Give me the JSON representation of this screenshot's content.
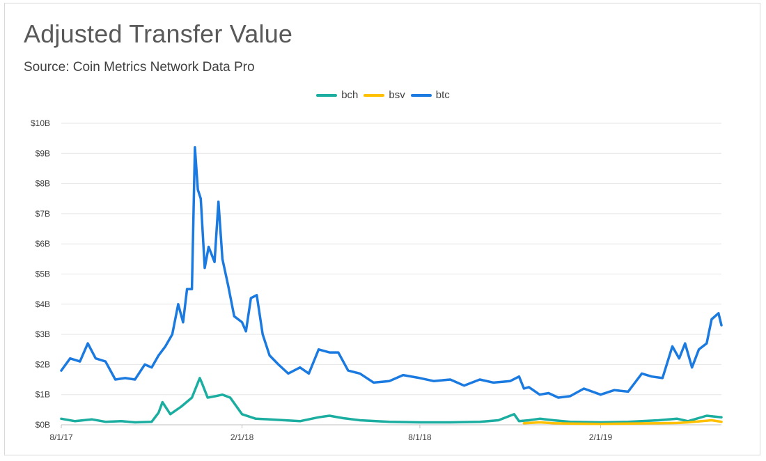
{
  "chart_data": {
    "type": "line",
    "title": "Adjusted Transfer Value",
    "subtitle": "Source:  Coin Metrics Network Data Pro",
    "xlabel": "",
    "ylabel": "",
    "x_ticks": [
      "8/1/17",
      "2/1/18",
      "8/1/18",
      "2/1/19"
    ],
    "y_ticks": [
      "$0B",
      "$1B",
      "$2B",
      "$3B",
      "$4B",
      "$5B",
      "$6B",
      "$7B",
      "$8B",
      "$9B",
      "$10B"
    ],
    "ylim": [
      0,
      10
    ],
    "y_unit": "billions USD",
    "xlim": [
      "2017-08-01",
      "2019-06-04"
    ],
    "grid": true,
    "legend_position": "top-center",
    "series": [
      {
        "name": "bch",
        "color": "#1aada0",
        "x": [
          "2017-08-01",
          "2017-08-15",
          "2017-09-01",
          "2017-09-15",
          "2017-10-01",
          "2017-10-15",
          "2017-11-01",
          "2017-11-08",
          "2017-11-12",
          "2017-11-20",
          "2017-12-01",
          "2017-12-12",
          "2017-12-20",
          "2017-12-22",
          "2017-12-28",
          "2018-01-05",
          "2018-01-12",
          "2018-01-20",
          "2018-02-01",
          "2018-02-15",
          "2018-03-01",
          "2018-04-01",
          "2018-04-20",
          "2018-05-01",
          "2018-05-15",
          "2018-06-01",
          "2018-07-01",
          "2018-08-01",
          "2018-09-01",
          "2018-10-01",
          "2018-10-20",
          "2018-11-05",
          "2018-11-10",
          "2018-11-20",
          "2018-12-01",
          "2018-12-15",
          "2019-01-01",
          "2019-02-01",
          "2019-03-01",
          "2019-04-01",
          "2019-04-20",
          "2019-05-01",
          "2019-05-20",
          "2019-06-04"
        ],
        "values": [
          0.2,
          0.12,
          0.18,
          0.1,
          0.12,
          0.08,
          0.1,
          0.4,
          0.75,
          0.35,
          0.6,
          0.9,
          1.55,
          1.4,
          0.9,
          0.95,
          1.0,
          0.9,
          0.35,
          0.2,
          0.18,
          0.12,
          0.25,
          0.3,
          0.22,
          0.15,
          0.1,
          0.08,
          0.08,
          0.1,
          0.15,
          0.35,
          0.12,
          0.15,
          0.2,
          0.15,
          0.1,
          0.08,
          0.1,
          0.15,
          0.2,
          0.12,
          0.3,
          0.25
        ]
      },
      {
        "name": "bsv",
        "color": "#ffc000",
        "x": [
          "2018-11-15",
          "2018-12-01",
          "2018-12-15",
          "2019-01-01",
          "2019-02-01",
          "2019-03-01",
          "2019-04-01",
          "2019-04-20",
          "2019-05-01",
          "2019-05-15",
          "2019-05-25",
          "2019-06-04"
        ],
        "values": [
          0.05,
          0.08,
          0.05,
          0.04,
          0.03,
          0.04,
          0.05,
          0.06,
          0.08,
          0.12,
          0.15,
          0.1
        ]
      },
      {
        "name": "btc",
        "color": "#1b7ae0",
        "x": [
          "2017-08-01",
          "2017-08-10",
          "2017-08-20",
          "2017-08-28",
          "2017-09-05",
          "2017-09-15",
          "2017-09-25",
          "2017-10-05",
          "2017-10-15",
          "2017-10-25",
          "2017-11-01",
          "2017-11-08",
          "2017-11-15",
          "2017-11-22",
          "2017-11-28",
          "2017-12-03",
          "2017-12-07",
          "2017-12-12",
          "2017-12-15",
          "2017-12-18",
          "2017-12-21",
          "2017-12-25",
          "2017-12-29",
          "2018-01-04",
          "2018-01-08",
          "2018-01-12",
          "2018-01-18",
          "2018-01-24",
          "2018-02-01",
          "2018-02-05",
          "2018-02-10",
          "2018-02-16",
          "2018-02-22",
          "2018-03-01",
          "2018-03-10",
          "2018-03-20",
          "2018-04-01",
          "2018-04-10",
          "2018-04-20",
          "2018-05-01",
          "2018-05-10",
          "2018-05-20",
          "2018-06-01",
          "2018-06-15",
          "2018-07-01",
          "2018-07-15",
          "2018-08-01",
          "2018-08-15",
          "2018-09-01",
          "2018-09-15",
          "2018-10-01",
          "2018-10-15",
          "2018-11-01",
          "2018-11-10",
          "2018-11-15",
          "2018-11-20",
          "2018-12-01",
          "2018-12-10",
          "2018-12-20",
          "2019-01-01",
          "2019-01-15",
          "2019-02-01",
          "2019-02-15",
          "2019-03-01",
          "2019-03-15",
          "2019-03-25",
          "2019-04-05",
          "2019-04-15",
          "2019-04-22",
          "2019-04-28",
          "2019-05-05",
          "2019-05-12",
          "2019-05-20",
          "2019-05-25",
          "2019-06-01",
          "2019-06-04"
        ],
        "values": [
          1.8,
          2.2,
          2.1,
          2.7,
          2.2,
          2.1,
          1.5,
          1.55,
          1.5,
          2.0,
          1.9,
          2.3,
          2.6,
          3.0,
          4.0,
          3.4,
          4.5,
          4.5,
          9.2,
          7.8,
          7.5,
          5.2,
          5.9,
          5.4,
          7.4,
          5.5,
          4.6,
          3.6,
          3.4,
          3.1,
          4.2,
          4.3,
          3.0,
          2.3,
          2.0,
          1.7,
          1.9,
          1.7,
          2.5,
          2.4,
          2.4,
          1.8,
          1.7,
          1.4,
          1.45,
          1.65,
          1.55,
          1.45,
          1.5,
          1.3,
          1.5,
          1.4,
          1.45,
          1.6,
          1.2,
          1.25,
          1.0,
          1.05,
          0.9,
          0.95,
          1.2,
          1.0,
          1.15,
          1.1,
          1.7,
          1.6,
          1.55,
          2.6,
          2.2,
          2.7,
          1.9,
          2.5,
          2.7,
          3.5,
          3.7,
          3.3
        ]
      }
    ]
  }
}
